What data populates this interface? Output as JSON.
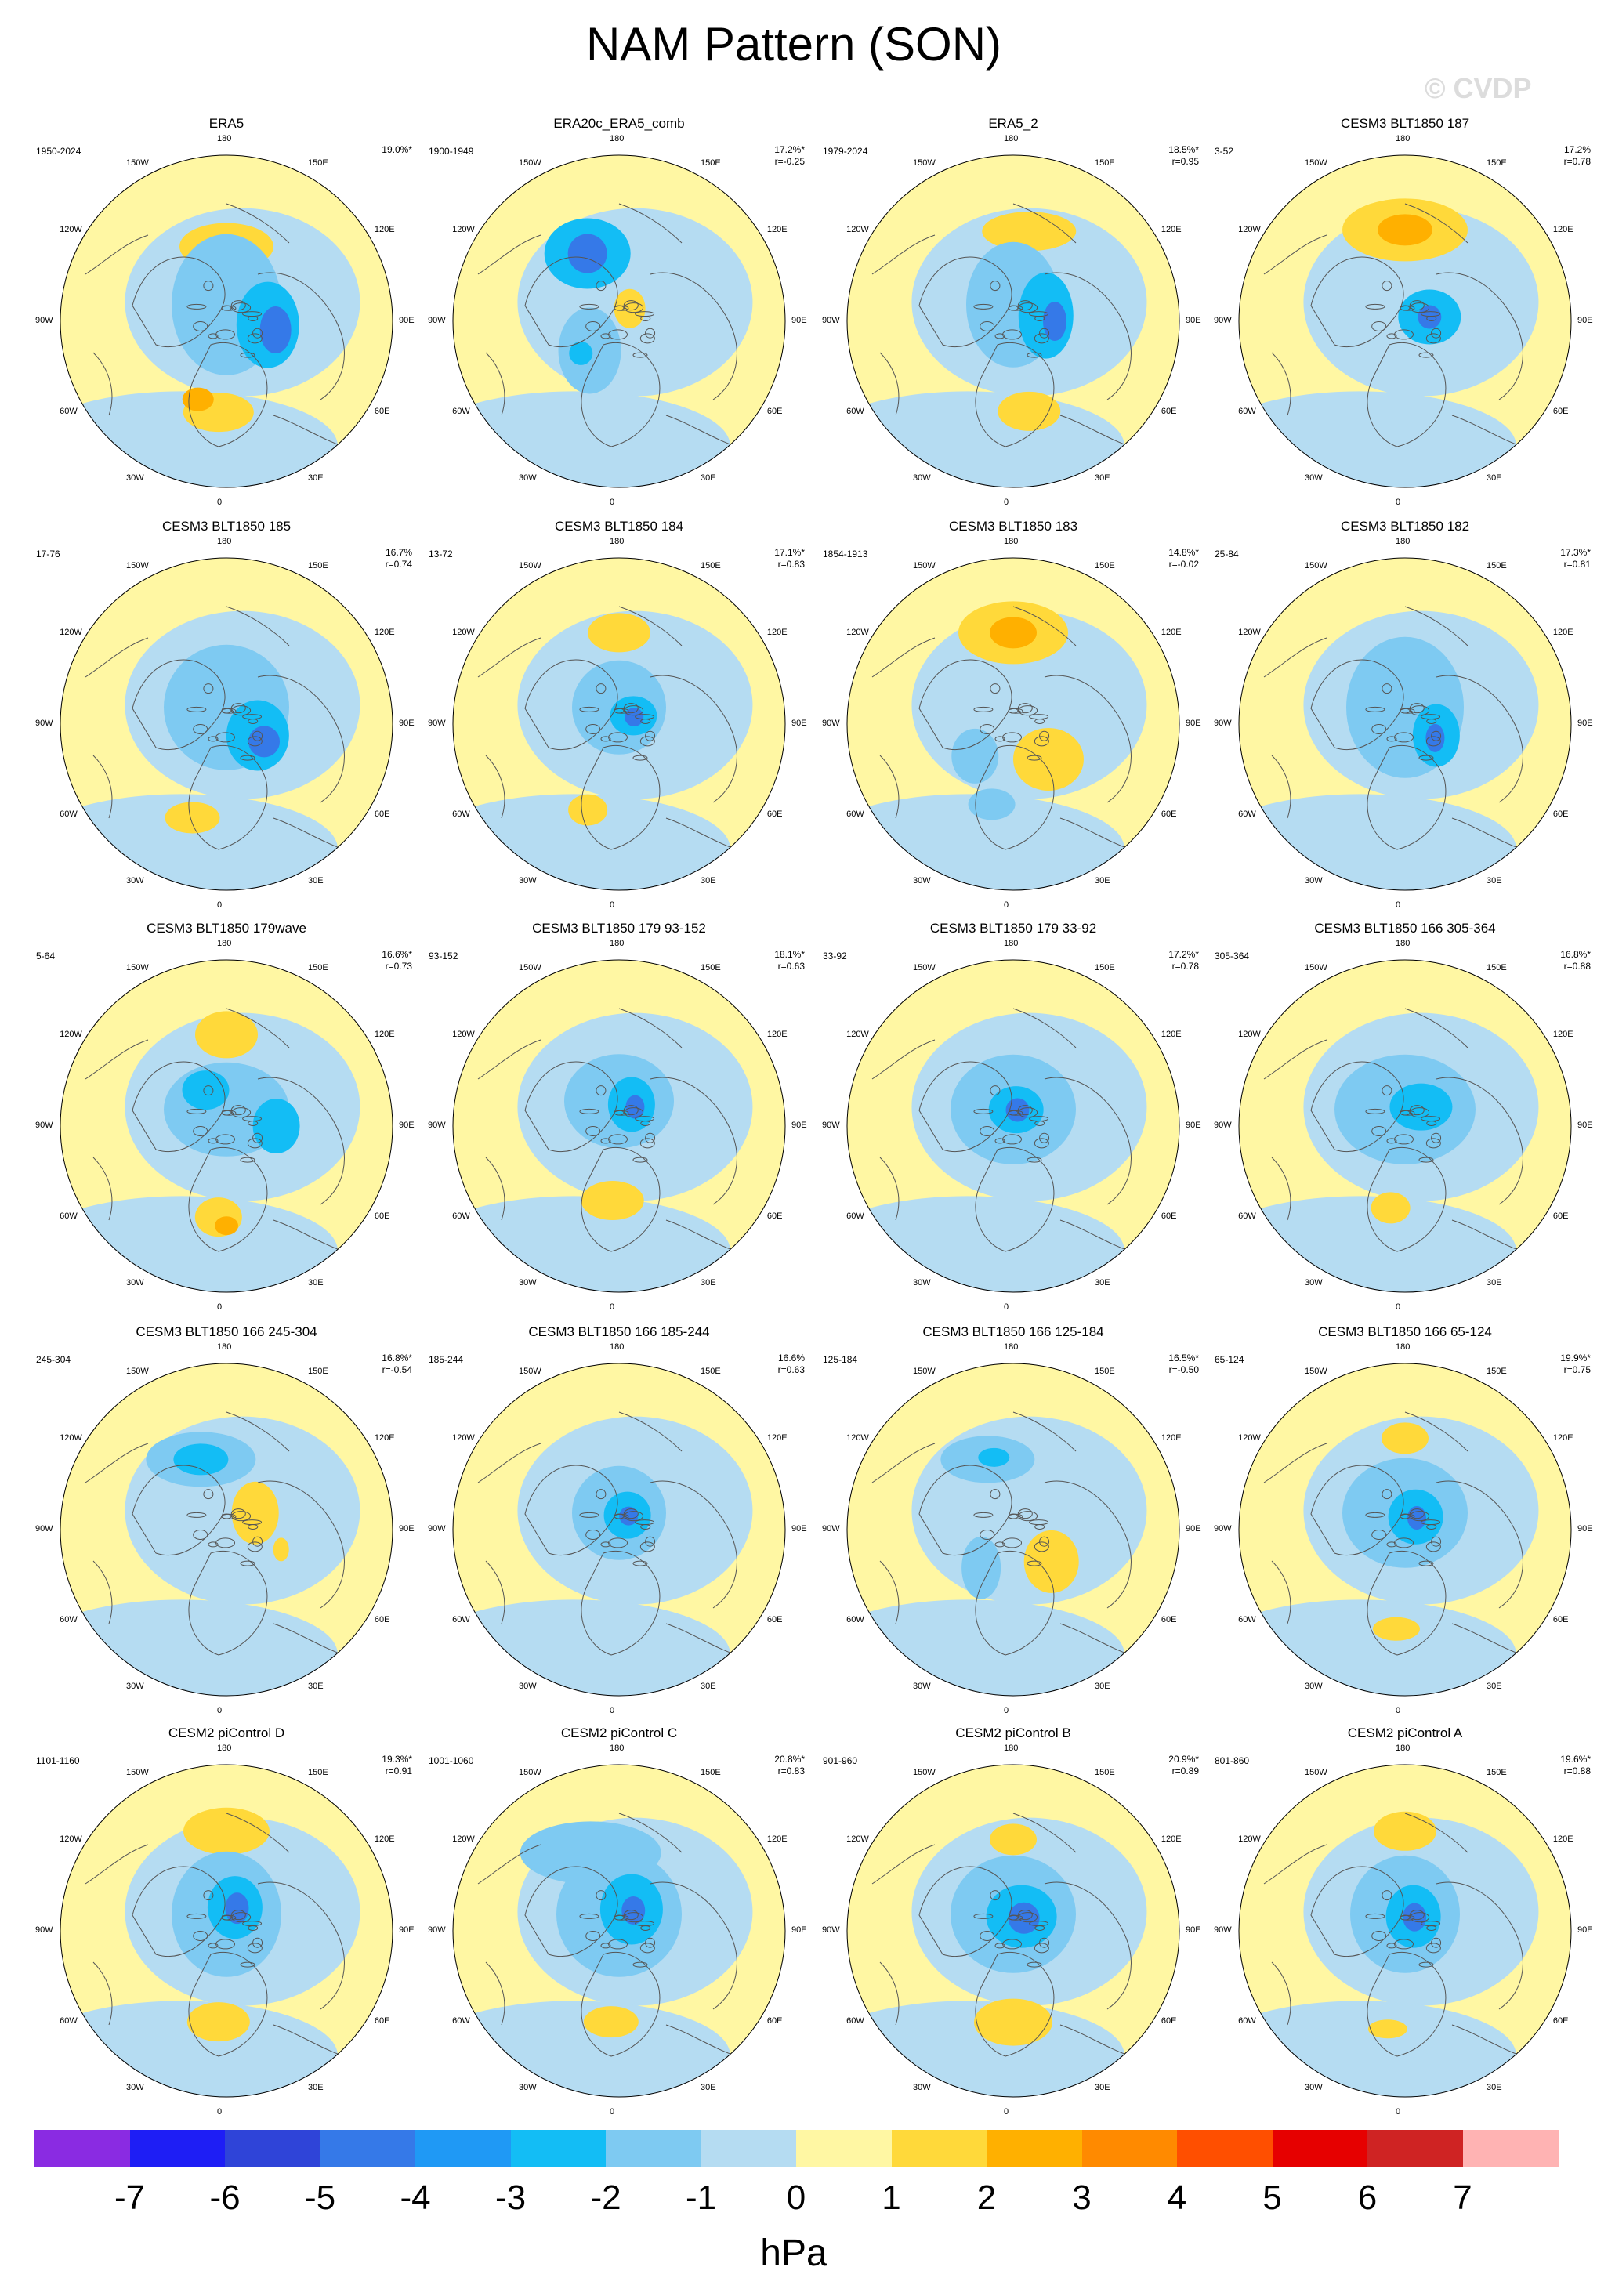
{
  "title": "NAM Pattern (SON)",
  "watermark": "© CVDP",
  "units": "hPa",
  "colorbar": {
    "labels": [
      "-7",
      "-6",
      "-5",
      "-4",
      "-3",
      "-2",
      "-1",
      "0",
      "1",
      "2",
      "3",
      "4",
      "5",
      "6",
      "7"
    ],
    "colors": [
      "#8a2be2",
      "#1e1ef5",
      "#2f44d8",
      "#3579e8",
      "#1f99f5",
      "#13bdf5",
      "#7ecaf2",
      "#b5dcf2",
      "#fff7a3",
      "#ffd93a",
      "#ffb000",
      "#ff8a00",
      "#ff4f00",
      "#e60000",
      "#cf2323",
      "#ffb3b3"
    ]
  },
  "lon_labels": [
    "180",
    "150E",
    "120E",
    "90E",
    "60E",
    "30E",
    "0",
    "30W",
    "60W",
    "90W",
    "120W",
    "150W"
  ],
  "panels": [
    {
      "title": "ERA5",
      "range": "1950-2024",
      "pct": "19.0%*",
      "r": "",
      "map": 0
    },
    {
      "title": "ERA20c_ERA5_comb",
      "range": "1900-1949",
      "pct": "17.2%*",
      "r": "r=-0.25",
      "map": 1
    },
    {
      "title": "ERA5_2",
      "range": "1979-2024",
      "pct": "18.5%*",
      "r": "r=0.95",
      "map": 2
    },
    {
      "title": "CESM3 BLT1850 187",
      "range": "3-52",
      "pct": "17.2%",
      "r": "r=0.78",
      "map": 3
    },
    {
      "title": "CESM3 BLT1850 185",
      "range": "17-76",
      "pct": "16.7%",
      "r": "r=0.74",
      "map": 4
    },
    {
      "title": "CESM3 BLT1850 184",
      "range": "13-72",
      "pct": "17.1%*",
      "r": "r=0.83",
      "map": 5
    },
    {
      "title": "CESM3 BLT1850 183",
      "range": "1854-1913",
      "pct": "14.8%*",
      "r": "r=-0.02",
      "map": 6
    },
    {
      "title": "CESM3 BLT1850 182",
      "range": "25-84",
      "pct": "17.3%*",
      "r": "r=0.81",
      "map": 7
    },
    {
      "title": "CESM3 BLT1850 179wave",
      "range": "5-64",
      "pct": "16.6%*",
      "r": "r=0.73",
      "map": 8
    },
    {
      "title": "CESM3 BLT1850 179 93-152",
      "range": "93-152",
      "pct": "18.1%*",
      "r": "r=0.63",
      "map": 9
    },
    {
      "title": "CESM3 BLT1850 179 33-92",
      "range": "33-92",
      "pct": "17.2%*",
      "r": "r=0.78",
      "map": 10
    },
    {
      "title": "CESM3 BLT1850 166 305-364",
      "range": "305-364",
      "pct": "16.8%*",
      "r": "r=0.88",
      "map": 11
    },
    {
      "title": "CESM3 BLT1850 166 245-304",
      "range": "245-304",
      "pct": "16.8%*",
      "r": "r=-0.54",
      "map": 12
    },
    {
      "title": "CESM3 BLT1850 166 185-244",
      "range": "185-244",
      "pct": "16.6%",
      "r": "r=0.63",
      "map": 13
    },
    {
      "title": "CESM3 BLT1850 166 125-184",
      "range": "125-184",
      "pct": "16.5%*",
      "r": "r=-0.50",
      "map": 14
    },
    {
      "title": "CESM3 BLT1850 166 65-124",
      "range": "65-124",
      "pct": "19.9%*",
      "r": "r=0.75",
      "map": 15
    },
    {
      "title": "CESM2 piControl D",
      "range": "1101-1160",
      "pct": "19.3%*",
      "r": "r=0.91",
      "map": 16
    },
    {
      "title": "CESM2 piControl C",
      "range": "1001-1060",
      "pct": "20.8%*",
      "r": "r=0.83",
      "map": 17
    },
    {
      "title": "CESM2 piControl B",
      "range": "901-960",
      "pct": "20.9%*",
      "r": "r=0.89",
      "map": 18
    },
    {
      "title": "CESM2 piControl A",
      "range": "801-860",
      "pct": "19.6%*",
      "r": "r=0.88",
      "map": 19
    }
  ]
}
